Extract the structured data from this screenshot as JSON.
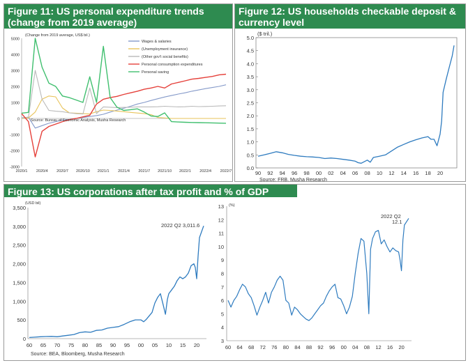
{
  "fig11": {
    "title": "Figure 11: US personal expenditure trends (change from 2019 average)",
    "unit_note": "(Change from 2019 average, US$ bil.)",
    "source": "Source: Bureau of Economic Analysis, Musha Research",
    "colors": {
      "wages": "#8499c9",
      "unemp": "#e8c35a",
      "other": "#b9b9b9",
      "pce": "#e5403a",
      "saving": "#3fbf6e"
    },
    "chart_data": {
      "type": "line",
      "x_labels": [
        "2020/1",
        "2020/4",
        "2020/7",
        "2020/10",
        "2021/1",
        "2021/4",
        "2021/7",
        "2021/10",
        "2022/1",
        "2022/4",
        "2022/7"
      ],
      "ylim": [
        -3000,
        5000
      ],
      "yticks": [
        -3000,
        -2000,
        -1000,
        0,
        1000,
        2000,
        3000,
        4000,
        5000
      ],
      "series": [
        {
          "name": "Wages & salaries",
          "key": "wages",
          "x": [
            0,
            1,
            2,
            3,
            4,
            5,
            6,
            7,
            8,
            9,
            10,
            11,
            12,
            13,
            14,
            15,
            16,
            17,
            18,
            19,
            20,
            21,
            22,
            23,
            24,
            25,
            26,
            27,
            28,
            29,
            30
          ],
          "values": [
            40,
            80,
            -600,
            -450,
            -300,
            -200,
            -100,
            -60,
            0,
            60,
            120,
            180,
            260,
            400,
            520,
            640,
            760,
            900,
            1000,
            1120,
            1230,
            1340,
            1430,
            1520,
            1600,
            1700,
            1780,
            1860,
            1930,
            2000,
            2100
          ]
        },
        {
          "name": "(Unemployment insurance)",
          "key": "unemp",
          "x": [
            0,
            1,
            2,
            3,
            4,
            5,
            6,
            7,
            8,
            9,
            10,
            11,
            12,
            13,
            14,
            15,
            16,
            17,
            18,
            19,
            20,
            21,
            22,
            23,
            24,
            25,
            26,
            27,
            28,
            29,
            30
          ],
          "values": [
            0,
            30,
            400,
            1200,
            1400,
            1350,
            650,
            350,
            330,
            300,
            280,
            420,
            520,
            500,
            460,
            420,
            380,
            340,
            300,
            240,
            60,
            30,
            0,
            0,
            0,
            0,
            0,
            0,
            0,
            0,
            0
          ]
        },
        {
          "name": "(Other gov't social benefits)",
          "key": "other",
          "x": [
            0,
            1,
            2,
            3,
            4,
            5,
            6,
            7,
            8,
            9,
            10,
            11,
            12,
            13,
            14,
            15,
            16,
            17,
            18,
            19,
            20,
            21,
            22,
            23,
            24,
            25,
            26,
            27,
            28,
            29,
            30
          ],
          "values": [
            20,
            80,
            3000,
            1200,
            500,
            450,
            420,
            350,
            300,
            280,
            1900,
            300,
            720,
            700,
            680,
            690,
            700,
            720,
            720,
            720,
            730,
            760,
            740,
            720,
            730,
            760,
            740,
            750,
            760,
            780,
            790
          ]
        },
        {
          "name": "Personal consumption expenditures",
          "key": "pce",
          "x": [
            0,
            1,
            2,
            3,
            4,
            5,
            6,
            7,
            8,
            9,
            10,
            11,
            12,
            13,
            14,
            15,
            16,
            17,
            18,
            19,
            20,
            21,
            22,
            23,
            24,
            25,
            26,
            27,
            28,
            29,
            30
          ],
          "values": [
            300,
            -200,
            -2400,
            -800,
            -500,
            -350,
            -200,
            -80,
            0,
            100,
            200,
            900,
            1200,
            1300,
            1380,
            1500,
            1600,
            1700,
            1820,
            1900,
            2000,
            1900,
            2150,
            2250,
            2350,
            2450,
            2500,
            2560,
            2620,
            2720,
            2760
          ]
        },
        {
          "name": "Personal saving",
          "key": "saving",
          "x": [
            0,
            1,
            2,
            3,
            4,
            5,
            6,
            7,
            8,
            9,
            10,
            11,
            12,
            13,
            14,
            15,
            16,
            17,
            18,
            19,
            20,
            21,
            22,
            23,
            24,
            25,
            26,
            27,
            28,
            29,
            30
          ],
          "values": [
            330,
            380,
            5000,
            3200,
            2200,
            2000,
            1400,
            1300,
            1150,
            1000,
            2600,
            1000,
            4500,
            1300,
            700,
            500,
            550,
            600,
            400,
            150,
            120,
            350,
            -200,
            -220,
            -240,
            -250,
            -260,
            -270,
            -280,
            -290,
            -300
          ]
        }
      ]
    }
  },
  "fig12": {
    "title": "Figure 12: US households checkable deposit & currency level",
    "unit": "($ tril.)",
    "source": "Source: FRB, Musha Research",
    "color": "#2e7bbf",
    "chart_data": {
      "type": "line",
      "x_labels": [
        "90",
        "92",
        "94",
        "96",
        "98",
        "00",
        "02",
        "04",
        "06",
        "08",
        "10",
        "12",
        "14",
        "16",
        "18",
        "20"
      ],
      "ylim": [
        0.0,
        5.0
      ],
      "yticks": [
        "0.0",
        "0.5",
        "1.0",
        "1.5",
        "2.0",
        "2.5",
        "3.0",
        "3.5",
        "4.0",
        "4.5",
        "5.0"
      ],
      "series": [
        {
          "name": "",
          "x": [
            1990,
            1991,
            1992,
            1993,
            1994,
            1995,
            1996,
            1997,
            1998,
            1999,
            2000,
            2001,
            2002,
            2003,
            2004,
            2005,
            2006,
            2006.5,
            2007,
            2008,
            2008.5,
            2009,
            2010,
            2011,
            2012,
            2013,
            2014,
            2015,
            2016,
            2017,
            2018,
            2018.5,
            2019,
            2019.5,
            2020,
            2020.25,
            2020.5,
            2021,
            2021.5,
            2022,
            2022.3
          ],
          "values": [
            0.45,
            0.5,
            0.56,
            0.62,
            0.58,
            0.52,
            0.48,
            0.45,
            0.43,
            0.42,
            0.4,
            0.36,
            0.38,
            0.36,
            0.33,
            0.3,
            0.26,
            0.2,
            0.18,
            0.3,
            0.22,
            0.4,
            0.45,
            0.5,
            0.65,
            0.8,
            0.9,
            1.0,
            1.08,
            1.15,
            1.2,
            1.1,
            1.1,
            0.85,
            1.3,
            1.8,
            2.9,
            3.4,
            3.85,
            4.3,
            4.7
          ]
        }
      ]
    }
  },
  "fig13": {
    "title": "Figure 13: US corporations after tax profit and % of GDP",
    "source": "Source: BEA, Bloomberg, Musha Research",
    "color": "#2e7bbf",
    "left": {
      "unit": "(USD bil)",
      "annotation": "2022 Q2   3,011.6",
      "chart_data": {
        "type": "line",
        "x_labels": [
          "60",
          "65",
          "70",
          "75",
          "80",
          "85",
          "90",
          "95",
          "00",
          "05",
          "10",
          "15",
          "20"
        ],
        "ylim": [
          0,
          3500
        ],
        "yticks": [
          "0",
          "500",
          "1,000",
          "1,500",
          "2,000",
          "2,500",
          "3,000",
          "3,500"
        ],
        "series": [
          {
            "name": "",
            "x": [
              1960,
              1962,
              1964,
              1966,
              1968,
              1970,
              1972,
              1974,
              1976,
              1978,
              1980,
              1982,
              1984,
              1986,
              1988,
              1990,
              1992,
              1994,
              1996,
              1998,
              2000,
              2001,
              2002,
              2004,
              2005,
              2006,
              2007,
              2008,
              2008.8,
              2009.5,
              2010,
              2011,
              2012,
              2013,
              2014,
              2015,
              2016,
              2017,
              2018,
              2019,
              2019.5,
              2020,
              2020.5,
              2021,
              2022.5
            ],
            "values": [
              30,
              40,
              50,
              55,
              60,
              50,
              70,
              90,
              110,
              160,
              180,
              170,
              220,
              230,
              280,
              300,
              320,
              380,
              450,
              500,
              500,
              450,
              520,
              700,
              950,
              1100,
              1200,
              900,
              650,
              1050,
              1200,
              1300,
              1400,
              1550,
              1650,
              1600,
              1650,
              1750,
              1950,
              2000,
              1900,
              1600,
              2200,
              2700,
              3011.6
            ]
          }
        ]
      }
    },
    "right": {
      "unit": "(%)",
      "annotation_line1": "2022 Q2",
      "annotation_line2": "12.1",
      "chart_data": {
        "type": "line",
        "x_labels": [
          "60",
          "64",
          "68",
          "72",
          "76",
          "80",
          "84",
          "88",
          "92",
          "96",
          "00",
          "04",
          "08",
          "12",
          "16",
          "20"
        ],
        "ylim": [
          3,
          13
        ],
        "yticks": [
          "3",
          "4",
          "5",
          "6",
          "7",
          "8",
          "9",
          "10",
          "11",
          "12",
          "13"
        ],
        "series": [
          {
            "name": "",
            "x": [
              1960,
              1961,
              1962,
              1963,
              1964,
              1965,
              1966,
              1967,
              1968,
              1969,
              1970,
              1971,
              1972,
              1973,
              1974,
              1975,
              1976,
              1977,
              1978,
              1979,
              1980,
              1981,
              1982,
              1983,
              1984,
              1985,
              1986,
              1987,
              1988,
              1989,
              1990,
              1991,
              1992,
              1993,
              1994,
              1995,
              1996,
              1997,
              1998,
              1999,
              2000,
              2001,
              2002,
              2003,
              2004,
              2005,
              2006,
              2007,
              2008,
              2008.7,
              2009.3,
              2010,
              2011,
              2012,
              2013,
              2014,
              2015,
              2016,
              2017,
              2018,
              2019,
              2019.5,
              2020,
              2020.5,
              2021,
              2022.5
            ],
            "values": [
              6.0,
              5.5,
              6.0,
              6.3,
              6.8,
              7.2,
              7.0,
              6.5,
              6.2,
              5.6,
              4.9,
              5.5,
              6.0,
              6.6,
              5.8,
              6.6,
              7.0,
              7.5,
              7.8,
              7.5,
              6.0,
              5.8,
              4.9,
              5.5,
              5.3,
              5.0,
              4.8,
              4.6,
              4.5,
              4.7,
              5.0,
              5.3,
              5.6,
              5.8,
              6.3,
              6.7,
              7.0,
              7.2,
              6.2,
              6.1,
              5.6,
              5.0,
              5.5,
              6.3,
              8.0,
              9.5,
              10.6,
              10.4,
              8.0,
              5.0,
              9.8,
              10.6,
              11.1,
              11.2,
              10.2,
              10.5,
              10.0,
              9.6,
              9.9,
              9.7,
              9.6,
              9.0,
              8.2,
              10.5,
              11.6,
              12.1
            ]
          }
        ]
      }
    }
  }
}
